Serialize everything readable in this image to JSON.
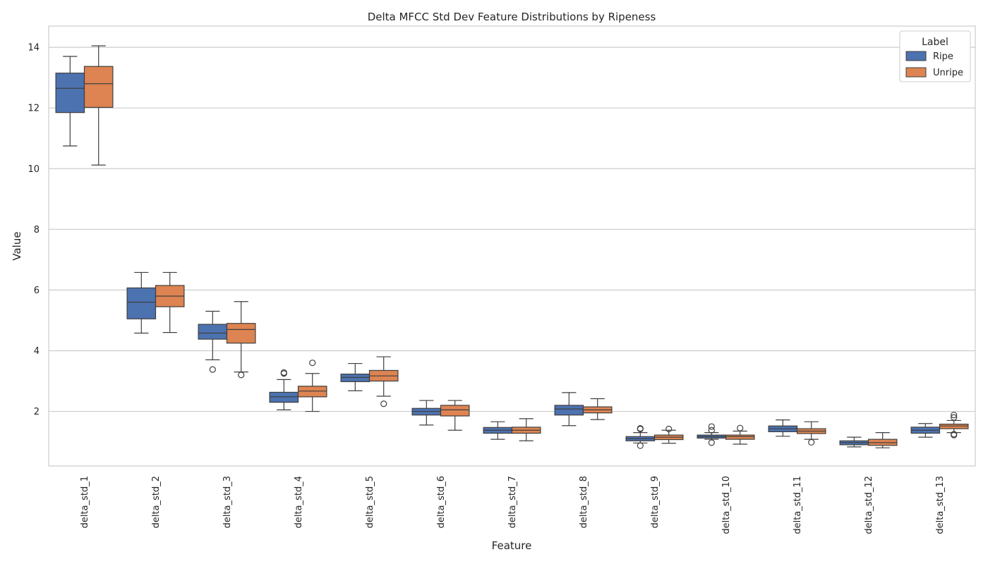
{
  "chart_data": {
    "type": "boxplot",
    "title": "Delta MFCC Std Dev Feature Distributions by Ripeness",
    "xlabel": "Feature",
    "ylabel": "Value",
    "ylim": [
      0.2,
      14.7
    ],
    "yticks": [
      2,
      4,
      6,
      8,
      10,
      12,
      14
    ],
    "grid": "horizontal",
    "legend": {
      "title": "Label",
      "placement": "top-right"
    },
    "categories": [
      "delta_std_1",
      "delta_std_2",
      "delta_std_3",
      "delta_std_4",
      "delta_std_5",
      "delta_std_6",
      "delta_std_7",
      "delta_std_8",
      "delta_std_9",
      "delta_std_10",
      "delta_std_11",
      "delta_std_12",
      "delta_std_13"
    ],
    "series": [
      {
        "name": "Ripe",
        "color": "#4c72b0",
        "boxes": [
          {
            "whislo": 10.75,
            "q1": 11.85,
            "med": 12.65,
            "q3": 13.15,
            "whishi": 13.7,
            "fliers": []
          },
          {
            "whislo": 4.58,
            "q1": 5.05,
            "med": 5.6,
            "q3": 6.07,
            "whishi": 6.58,
            "fliers": []
          },
          {
            "whislo": 3.7,
            "q1": 4.38,
            "med": 4.58,
            "q3": 4.87,
            "whishi": 5.3,
            "fliers": [
              3.38
            ]
          },
          {
            "whislo": 2.05,
            "q1": 2.3,
            "med": 2.48,
            "q3": 2.63,
            "whishi": 3.05,
            "fliers": [
              3.25,
              3.28
            ]
          },
          {
            "whislo": 2.68,
            "q1": 2.98,
            "med": 3.12,
            "q3": 3.23,
            "whishi": 3.58,
            "fliers": []
          },
          {
            "whislo": 1.55,
            "q1": 1.88,
            "med": 2.0,
            "q3": 2.1,
            "whishi": 2.36,
            "fliers": []
          },
          {
            "whislo": 1.08,
            "q1": 1.28,
            "med": 1.38,
            "q3": 1.47,
            "whishi": 1.66,
            "fliers": []
          },
          {
            "whislo": 1.53,
            "q1": 1.88,
            "med": 2.08,
            "q3": 2.2,
            "whishi": 2.62,
            "fliers": []
          },
          {
            "whislo": 0.96,
            "q1": 1.03,
            "med": 1.1,
            "q3": 1.17,
            "whishi": 1.3,
            "fliers": [
              1.42,
              1.44,
              0.87
            ]
          },
          {
            "whislo": 1.08,
            "q1": 1.12,
            "med": 1.17,
            "q3": 1.22,
            "whishi": 1.3,
            "fliers": [
              1.5,
              1.38,
              0.97
            ]
          },
          {
            "whislo": 1.18,
            "q1": 1.33,
            "med": 1.43,
            "q3": 1.52,
            "whishi": 1.72,
            "fliers": []
          },
          {
            "whislo": 0.83,
            "q1": 0.9,
            "med": 0.97,
            "q3": 1.03,
            "whishi": 1.15,
            "fliers": []
          },
          {
            "whislo": 1.15,
            "q1": 1.28,
            "med": 1.38,
            "q3": 1.48,
            "whishi": 1.6,
            "fliers": []
          }
        ]
      },
      {
        "name": "Unripe",
        "color": "#dd8452",
        "boxes": [
          {
            "whislo": 10.12,
            "q1": 12.02,
            "med": 12.8,
            "q3": 13.37,
            "whishi": 14.05,
            "fliers": []
          },
          {
            "whislo": 4.6,
            "q1": 5.45,
            "med": 5.8,
            "q3": 6.15,
            "whishi": 6.58,
            "fliers": []
          },
          {
            "whislo": 3.3,
            "q1": 4.25,
            "med": 4.7,
            "q3": 4.9,
            "whishi": 5.62,
            "fliers": [
              3.2
            ]
          },
          {
            "whislo": 2.0,
            "q1": 2.48,
            "med": 2.67,
            "q3": 2.83,
            "whishi": 3.25,
            "fliers": [
              3.6
            ]
          },
          {
            "whislo": 2.5,
            "q1": 3.0,
            "med": 3.17,
            "q3": 3.35,
            "whishi": 3.8,
            "fliers": [
              2.25
            ]
          },
          {
            "whislo": 1.38,
            "q1": 1.85,
            "med": 2.05,
            "q3": 2.2,
            "whishi": 2.36,
            "fliers": []
          },
          {
            "whislo": 1.03,
            "q1": 1.28,
            "med": 1.38,
            "q3": 1.48,
            "whishi": 1.76,
            "fliers": []
          },
          {
            "whislo": 1.73,
            "q1": 1.95,
            "med": 2.05,
            "q3": 2.15,
            "whishi": 2.42,
            "fliers": []
          },
          {
            "whislo": 0.95,
            "q1": 1.07,
            "med": 1.15,
            "q3": 1.22,
            "whishi": 1.38,
            "fliers": [
              1.42
            ]
          },
          {
            "whislo": 0.92,
            "q1": 1.08,
            "med": 1.17,
            "q3": 1.22,
            "whishi": 1.35,
            "fliers": [
              1.45
            ]
          },
          {
            "whislo": 1.08,
            "q1": 1.27,
            "med": 1.35,
            "q3": 1.43,
            "whishi": 1.66,
            "fliers": [
              0.98
            ]
          },
          {
            "whislo": 0.8,
            "q1": 0.88,
            "med": 0.97,
            "q3": 1.08,
            "whishi": 1.3,
            "fliers": []
          },
          {
            "whislo": 1.3,
            "q1": 1.43,
            "med": 1.52,
            "q3": 1.58,
            "whishi": 1.7,
            "fliers": [
              1.88,
              1.8,
              1.25,
              1.22
            ]
          }
        ]
      }
    ]
  }
}
